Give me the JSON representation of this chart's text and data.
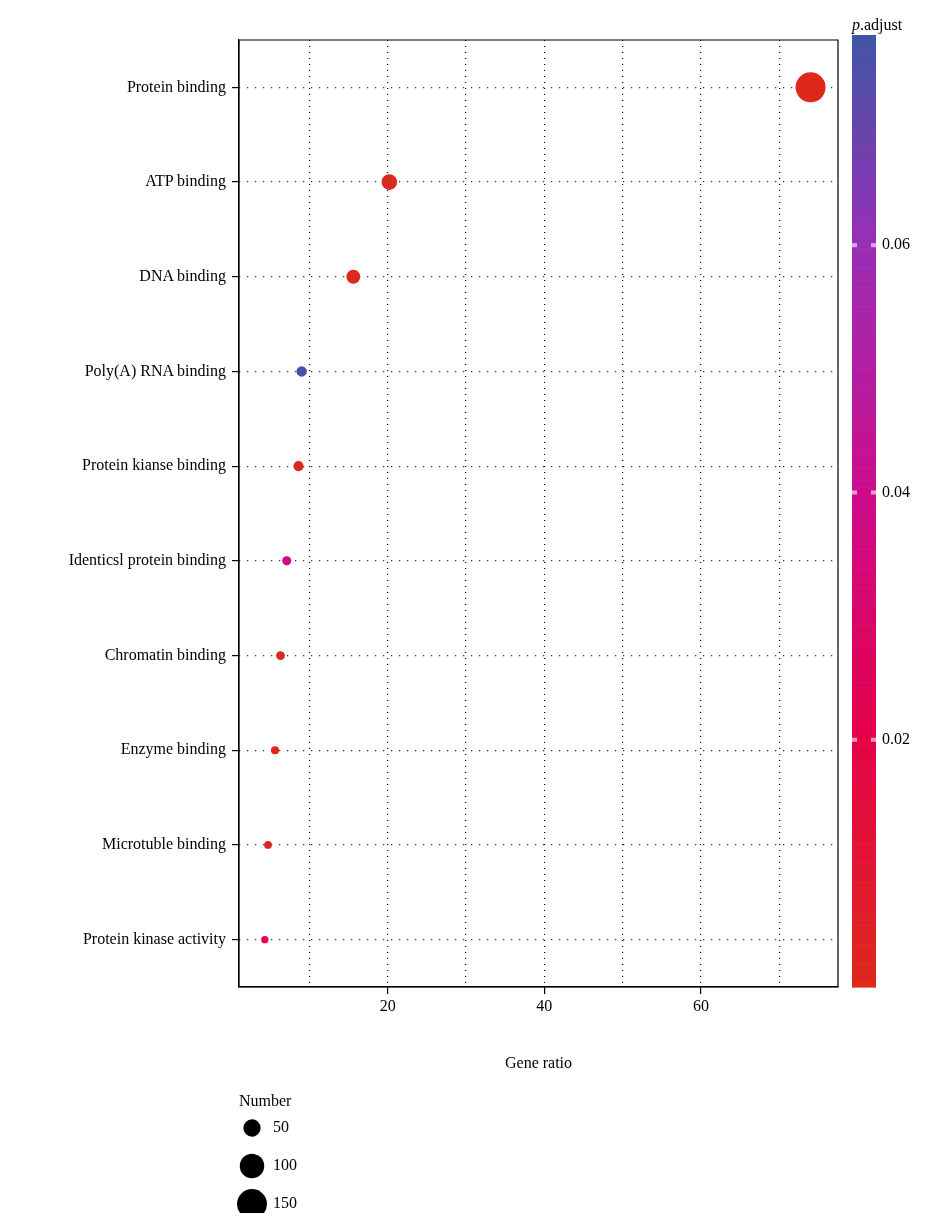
{
  "chart_data": {
    "type": "bubble",
    "categories": [
      "Protein binding",
      "ATP binding",
      "DNA binding",
      "Poly(A) RNA binding",
      "Protein kianse binding",
      "Identicsl protein binding",
      "Chromatin binding",
      "Enzyme binding",
      "Microtuble binding",
      "Protein kinase activity"
    ],
    "values": [
      74.0,
      20.2,
      15.6,
      9.0,
      8.6,
      7.1,
      6.3,
      5.6,
      4.7,
      4.3
    ],
    "sizes": [
      150,
      41,
      32,
      18,
      17,
      14,
      13,
      11,
      10,
      9
    ],
    "cvalues": [
      0.001,
      0.001,
      0.001,
      0.075,
      0.002,
      0.038,
      0.002,
      0.003,
      0.004,
      0.018
    ],
    "orientation": "horizontal",
    "xlabel": "Gene ratio",
    "xlim": [
      1,
      77.5
    ],
    "xticks": [
      {
        "value": 10,
        "label": null
      },
      20,
      {
        "value": 30,
        "label": null
      },
      40,
      {
        "value": 50,
        "label": null
      },
      60,
      {
        "value": 70,
        "label": null
      }
    ],
    "clabel": "p.adjust",
    "clim": [
      0,
      0.077
    ],
    "cticks": [
      0.02,
      0.04,
      0.06
    ],
    "legend_title": "Number",
    "size_legend": [
      50,
      100,
      150
    ],
    "grid": true
  }
}
